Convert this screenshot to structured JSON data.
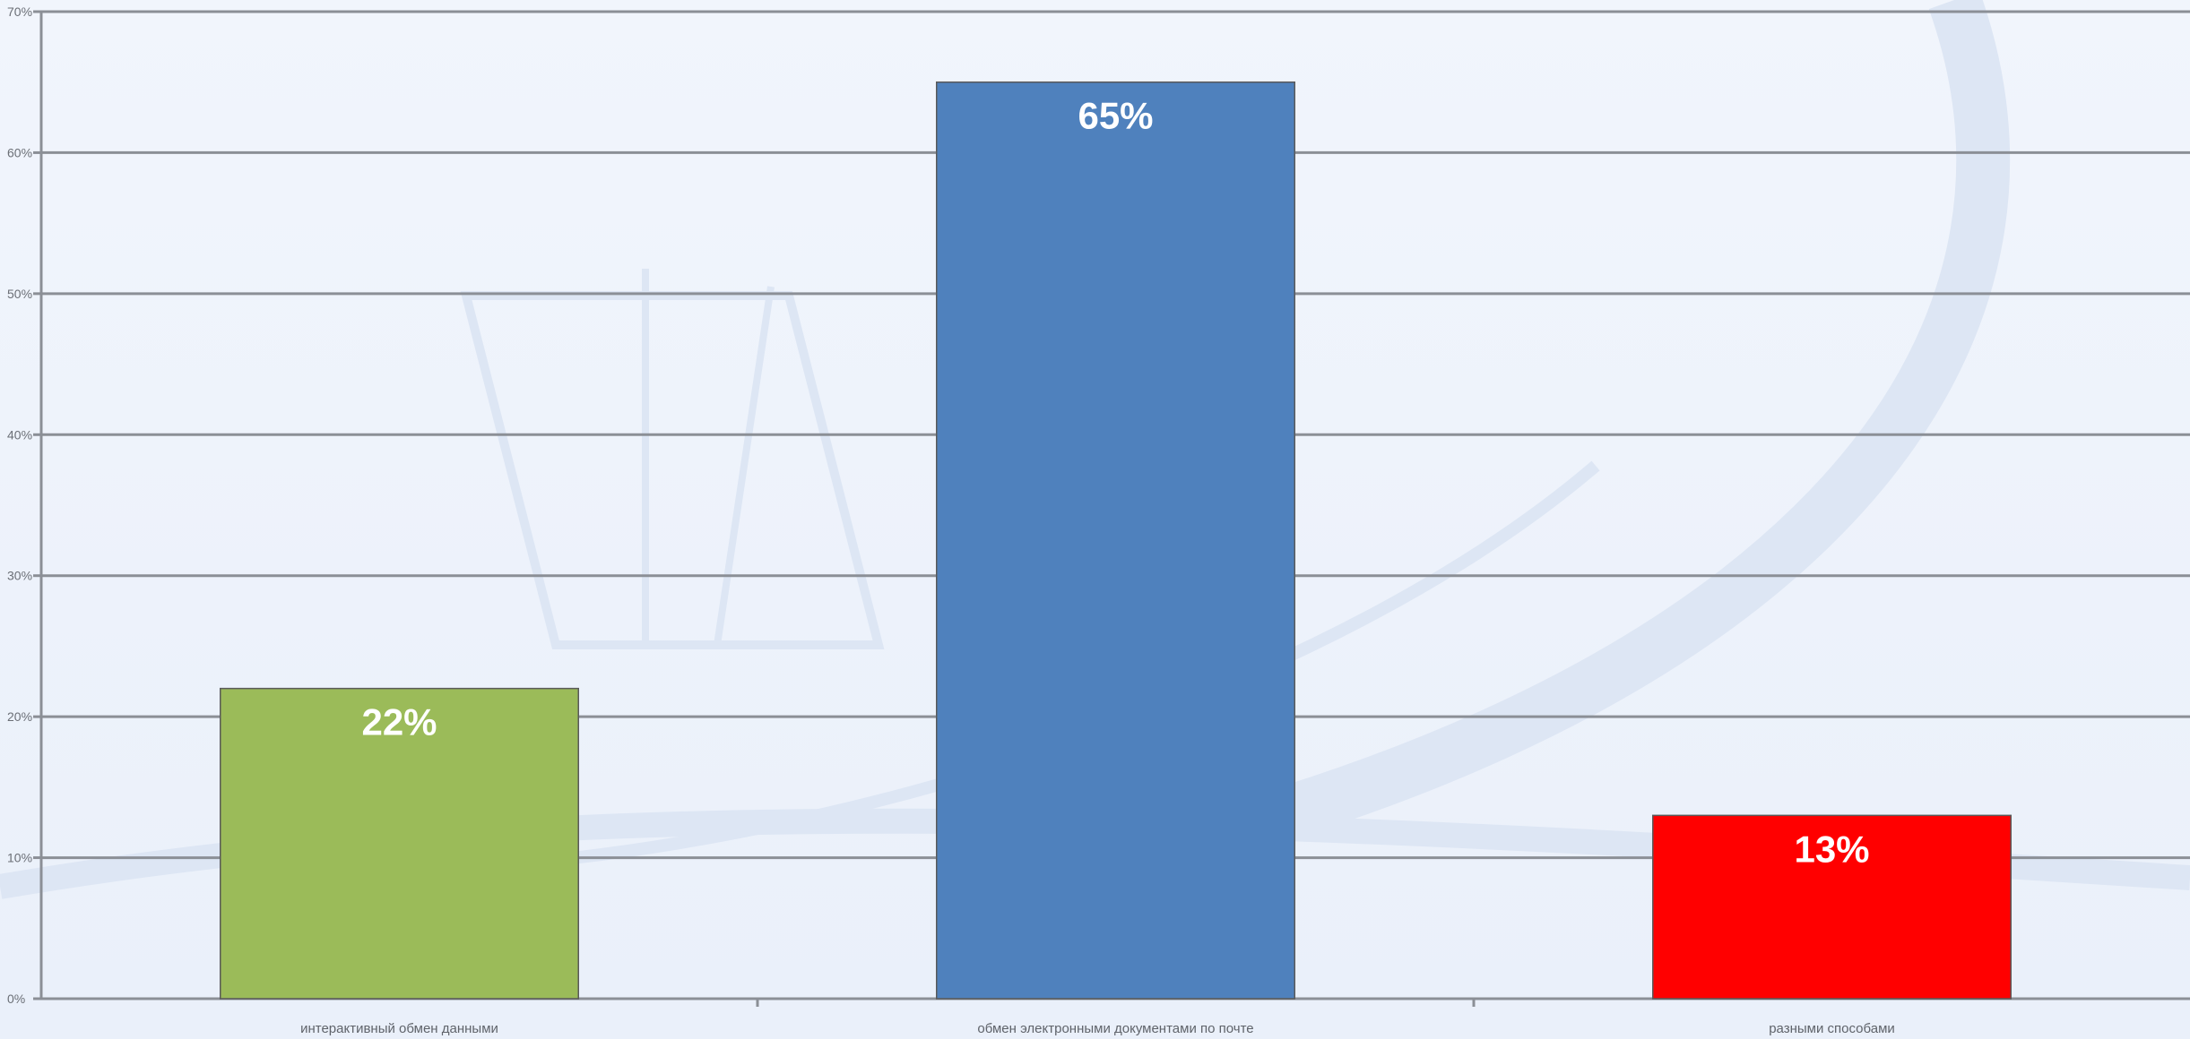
{
  "chart_data": {
    "type": "bar",
    "categories": [
      "интерактивный обмен данными",
      "обмен электронными документами по почте",
      "разными способами"
    ],
    "values": [
      22,
      65,
      13
    ],
    "data_labels": [
      "22%",
      "65%",
      "13%"
    ],
    "bar_colors": [
      "#9bbb59",
      "#4f81bd",
      "#ff0000"
    ],
    "ylim": [
      0,
      70
    ],
    "y_ticks": [
      0,
      10,
      20,
      30,
      40,
      50,
      60,
      70
    ],
    "y_tick_labels": [
      "0%",
      "10%",
      "20%",
      "30%",
      "40%",
      "50%",
      "60%",
      "70%"
    ],
    "grid": true,
    "legend": "none"
  }
}
